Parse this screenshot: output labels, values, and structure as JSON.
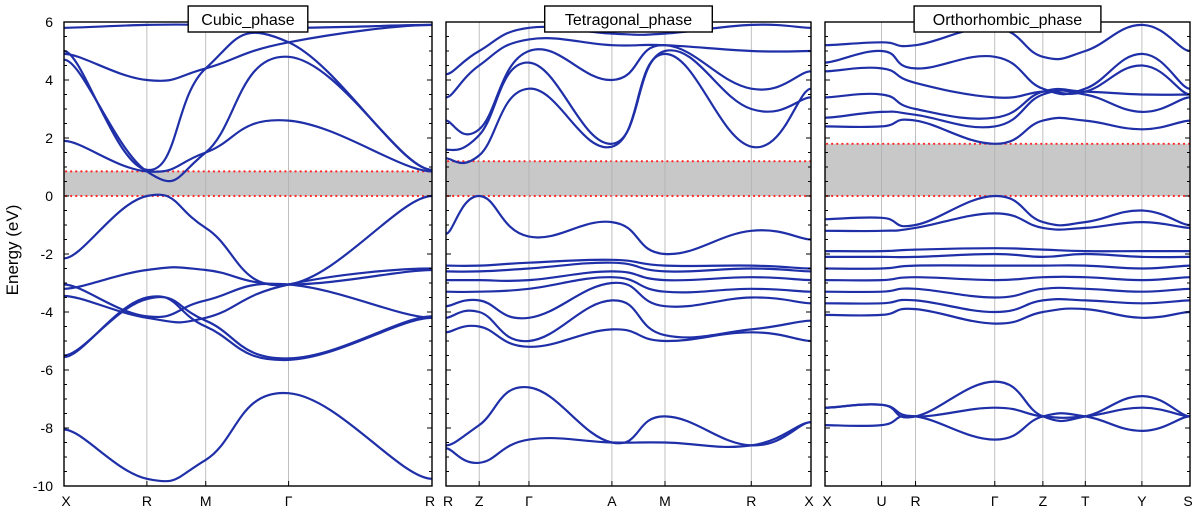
{
  "chart_data": {
    "type": "line",
    "ylabel": "Energy (eV)",
    "ylim": [
      -10,
      6
    ],
    "yticks": [
      6,
      4,
      2,
      0,
      -2,
      -4,
      -6,
      -8,
      -10
    ],
    "colors": {
      "bands": "#1f2fa8",
      "gap_fill": "#c8c8c8",
      "gap_edges": "#ff2a2a"
    },
    "panels": [
      {
        "title": "Cubic_phase",
        "kpoints": [
          "X",
          "R",
          "M",
          "Γ",
          "R"
        ],
        "k": [
          0,
          1,
          1.71,
          2.71,
          4.44
        ],
        "gap": [
          0,
          0.85
        ],
        "bands": [
          [
            -8.05,
            -9.75,
            -9.1,
            -6.8,
            -9.75
          ],
          [
            -5.55,
            -3.5,
            -4.5,
            -5.65,
            -4.2
          ],
          [
            -5.5,
            -3.55,
            -4.3,
            -5.6,
            -4.15
          ],
          [
            -3.45,
            -4.2,
            -4.2,
            -3.05,
            -2.5
          ],
          [
            -3.2,
            -2.55,
            -2.55,
            -3.05,
            -2.55
          ],
          [
            -3.05,
            -4.15,
            -3.6,
            -3.05,
            -4.2
          ],
          [
            -2.15,
            0.0,
            -1.1,
            -3.05,
            0.0
          ],
          [
            1.9,
            0.85,
            1.5,
            2.6,
            0.85
          ],
          [
            4.7,
            0.85,
            1.5,
            4.8,
            0.9
          ],
          [
            5.0,
            0.9,
            4.4,
            5.3,
            0.9
          ],
          [
            4.9,
            4.0,
            4.4,
            5.3,
            5.9
          ],
          [
            5.8,
            5.9,
            5.9,
            5.8,
            5.9
          ]
        ]
      },
      {
        "title": "Tetragonal_phase",
        "kpoints": [
          "R",
          "Z",
          "Γ",
          "A",
          "M",
          "R",
          "X"
        ],
        "k": [
          0,
          0.5,
          1.25,
          2.5,
          3.3,
          4.6,
          5.5
        ],
        "gap": [
          0,
          1.2
        ],
        "bands": [
          [
            -8.6,
            -7.9,
            -6.6,
            -8.5,
            -7.6,
            -8.6,
            -7.8
          ],
          [
            -8.7,
            -9.2,
            -8.4,
            -8.5,
            -8.5,
            -8.6,
            -7.8
          ],
          [
            -4.7,
            -4.5,
            -5.2,
            -4.6,
            -5.0,
            -4.7,
            -5.0
          ],
          [
            -4.2,
            -4.0,
            -5.0,
            -3.6,
            -4.8,
            -4.6,
            -4.3
          ],
          [
            -3.8,
            -3.6,
            -4.2,
            -3.0,
            -3.8,
            -3.5,
            -3.7
          ],
          [
            -3.3,
            -3.3,
            -3.2,
            -2.8,
            -3.3,
            -3.2,
            -3.3
          ],
          [
            -2.9,
            -2.9,
            -2.9,
            -2.6,
            -2.9,
            -2.8,
            -2.9
          ],
          [
            -2.6,
            -2.6,
            -2.5,
            -2.3,
            -2.6,
            -2.5,
            -2.6
          ],
          [
            -2.4,
            -2.4,
            -2.3,
            -2.2,
            -2.4,
            -2.4,
            -2.5
          ],
          [
            -1.3,
            0.0,
            -1.4,
            -0.9,
            -2.0,
            -1.2,
            -1.5
          ],
          [
            1.3,
            1.4,
            3.7,
            1.7,
            4.9,
            1.7,
            3.7
          ],
          [
            1.6,
            2.1,
            4.6,
            1.8,
            5.0,
            3.0,
            3.4
          ],
          [
            2.6,
            2.3,
            5.0,
            4.0,
            5.2,
            3.7,
            4.3
          ],
          [
            3.4,
            4.5,
            5.4,
            5.2,
            5.2,
            5.0,
            5.0
          ],
          [
            4.2,
            5.0,
            5.8,
            5.6,
            5.6,
            5.9,
            5.8
          ]
        ]
      },
      {
        "title": "Orthorhombic_phase",
        "kpoints": [
          "X",
          "U",
          "R",
          "Γ",
          "Z",
          "T",
          "Y",
          "S"
        ],
        "k": [
          0,
          1,
          1.6,
          3,
          3.85,
          4.6,
          5.6,
          6.45
        ],
        "gap": [
          0,
          1.8
        ],
        "bands": [
          [
            -7.9,
            -7.9,
            -7.6,
            -8.4,
            -7.6,
            -7.6,
            -8.1,
            -7.6
          ],
          [
            -7.3,
            -7.2,
            -7.6,
            -7.3,
            -7.6,
            -7.6,
            -7.3,
            -7.6
          ],
          [
            -7.3,
            -7.2,
            -7.6,
            -6.4,
            -7.6,
            -7.6,
            -6.9,
            -7.6
          ],
          [
            -4.1,
            -4.1,
            -3.9,
            -4.4,
            -4.0,
            -3.9,
            -4.2,
            -4.0
          ],
          [
            -3.7,
            -3.7,
            -3.6,
            -4.0,
            -3.6,
            -3.6,
            -3.7,
            -3.6
          ],
          [
            -3.3,
            -3.3,
            -3.2,
            -3.5,
            -3.2,
            -3.2,
            -3.3,
            -3.2
          ],
          [
            -2.9,
            -2.9,
            -2.8,
            -2.9,
            -2.8,
            -2.8,
            -2.9,
            -2.8
          ],
          [
            -2.5,
            -2.5,
            -2.4,
            -2.4,
            -2.4,
            -2.4,
            -2.5,
            -2.4
          ],
          [
            -2.1,
            -2.1,
            -2.1,
            -2.0,
            -2.1,
            -2.0,
            -2.1,
            -2.1
          ],
          [
            -1.9,
            -1.9,
            -1.85,
            -1.8,
            -1.85,
            -1.9,
            -1.9,
            -1.9
          ],
          [
            -1.2,
            -1.2,
            -1.1,
            -0.6,
            -1.1,
            -1.1,
            -0.9,
            -1.1
          ],
          [
            -0.8,
            -0.75,
            -1.0,
            0.0,
            -0.9,
            -0.9,
            -0.5,
            -1.0
          ],
          [
            2.4,
            2.4,
            2.6,
            1.8,
            2.6,
            2.6,
            2.3,
            2.6
          ],
          [
            2.7,
            2.9,
            2.8,
            2.4,
            3.5,
            3.5,
            2.9,
            3.4
          ],
          [
            3.4,
            3.5,
            3.0,
            2.7,
            3.6,
            3.6,
            3.5,
            3.5
          ],
          [
            4.3,
            4.4,
            3.9,
            3.4,
            3.6,
            3.6,
            4.5,
            3.5
          ],
          [
            4.6,
            5.0,
            4.4,
            4.8,
            3.7,
            3.7,
            4.9,
            3.7
          ],
          [
            5.2,
            5.3,
            5.2,
            5.8,
            4.8,
            5.0,
            5.9,
            5.0
          ]
        ]
      }
    ]
  }
}
